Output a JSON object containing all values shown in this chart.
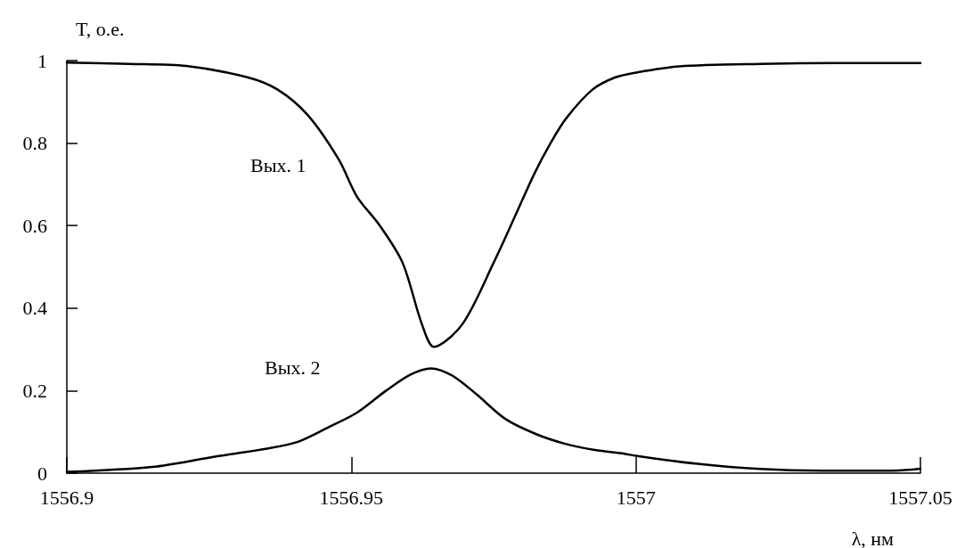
{
  "chart_data": {
    "type": "line",
    "xlabel": "λ, нм",
    "ylabel": "T, о.е.",
    "xlim": [
      1556.9,
      1557.05
    ],
    "xticks": [
      1556.9,
      1556.95,
      1557,
      1557.05
    ],
    "ylim": [
      0,
      1
    ],
    "yticks": [
      0,
      0.2,
      0.4,
      0.6,
      0.8,
      1
    ],
    "grid": false,
    "marker": "none",
    "line_style": "solid",
    "annotations": [
      "Вых. 1",
      "Вых. 2"
    ],
    "series": [
      {
        "color": "#000000",
        "x": [
          1556.9,
          1556.911,
          1556.921,
          1556.9316,
          1556.937,
          1556.9424,
          1556.9478,
          1556.951,
          1556.955,
          1556.959,
          1556.9624,
          1556.9645,
          1556.9695,
          1556.975,
          1556.979,
          1556.9822,
          1556.985,
          1556.9878,
          1556.9924,
          1556.9963,
          1557,
          1557.0076,
          1557.0218,
          1557.035,
          1557.05
        ],
        "values": [
          0.995,
          0.992,
          0.987,
          0.96,
          0.93,
          0.867,
          0.76,
          0.67,
          0.6,
          0.51,
          0.361,
          0.306,
          0.361,
          0.51,
          0.63,
          0.727,
          0.8,
          0.861,
          0.93,
          0.959,
          0.971,
          0.986,
          0.992,
          0.994,
          0.994
        ]
      },
      {
        "color": "#000000",
        "x": [
          1556.9,
          1556.915,
          1556.926,
          1556.9354,
          1556.9406,
          1556.9458,
          1556.951,
          1556.956,
          1556.9604,
          1556.964,
          1556.9678,
          1556.972,
          1556.977,
          1556.9824,
          1556.9876,
          1556.9928,
          1556.998,
          1557,
          1557.0105,
          1557.0218,
          1557.033,
          1557.045,
          1557.05
        ],
        "values": [
          0.003,
          0.015,
          0.04,
          0.06,
          0.076,
          0.11,
          0.147,
          0.199,
          0.239,
          0.254,
          0.236,
          0.191,
          0.132,
          0.095,
          0.071,
          0.056,
          0.047,
          0.042,
          0.023,
          0.01,
          0.006,
          0.006,
          0.011
        ]
      }
    ]
  }
}
